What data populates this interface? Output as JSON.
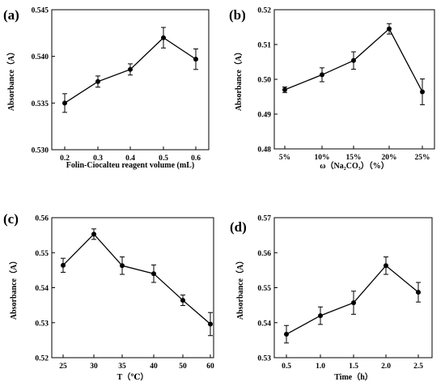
{
  "chart_data": [
    {
      "type": "line",
      "panel_label": "(a)",
      "xlabel": "Folin-Ciocalteu reagent volume (mL)",
      "ylabel": "Absorbance（A）",
      "categories": [
        "0.2",
        "0.3",
        "0.4",
        "0.5",
        "0.6"
      ],
      "ylim": [
        0.53,
        0.545
      ],
      "yticks": [
        "0.530",
        "0.535",
        "0.540",
        "0.545"
      ],
      "ytick_values": [
        0.53,
        0.535,
        0.54,
        0.545
      ],
      "series": [
        {
          "values": [
            0.535,
            0.5373,
            0.5386,
            0.542,
            0.5397
          ],
          "errors": [
            0.001,
            0.0006,
            0.0006,
            0.0011,
            0.0011
          ]
        }
      ]
    },
    {
      "type": "line",
      "panel_label": "(b)",
      "xlabel": "ω（Na₂CO₃）（%）",
      "ylabel": "Absorbance（A）",
      "categories": [
        "5%",
        "10%",
        "15%",
        "20%",
        "25%"
      ],
      "ylim": [
        0.48,
        0.52
      ],
      "yticks": [
        "0.48",
        "0.49",
        "0.50",
        "0.51",
        "0.52"
      ],
      "ytick_values": [
        0.48,
        0.49,
        0.5,
        0.51,
        0.52
      ],
      "series": [
        {
          "values": [
            0.497,
            0.5013,
            0.5054,
            0.5145,
            0.4964
          ],
          "errors": [
            0.0008,
            0.002,
            0.0025,
            0.0015,
            0.0037
          ]
        }
      ]
    },
    {
      "type": "line",
      "panel_label": "(c)",
      "xlabel": "T（℃）",
      "ylabel": "Absorbance（A）",
      "categories": [
        "25",
        "30",
        "35",
        "40",
        "50",
        "60"
      ],
      "ylim": [
        0.52,
        0.56
      ],
      "yticks": [
        "0.52",
        "0.53",
        "0.54",
        "0.55",
        "0.56"
      ],
      "ytick_values": [
        0.52,
        0.53,
        0.54,
        0.55,
        0.56
      ],
      "series": [
        {
          "values": [
            0.5464,
            0.5553,
            0.5463,
            0.544,
            0.5364,
            0.5296
          ],
          "errors": [
            0.002,
            0.0015,
            0.0025,
            0.0025,
            0.0015,
            0.0033
          ]
        }
      ]
    },
    {
      "type": "line",
      "panel_label": "(d)",
      "xlabel": "Time（h）",
      "ylabel": "Absorbance（A）",
      "categories": [
        "0.5",
        "1.0",
        "1.5",
        "2.0",
        "2.5"
      ],
      "ylim": [
        0.53,
        0.57
      ],
      "yticks": [
        "0.53",
        "0.54",
        "0.55",
        "0.56",
        "0.57"
      ],
      "ytick_values": [
        0.53,
        0.54,
        0.55,
        0.56,
        0.57
      ],
      "series": [
        {
          "values": [
            0.5367,
            0.542,
            0.5457,
            0.5563,
            0.5487
          ],
          "errors": [
            0.0025,
            0.0025,
            0.0033,
            0.0025,
            0.0028
          ]
        }
      ]
    }
  ]
}
